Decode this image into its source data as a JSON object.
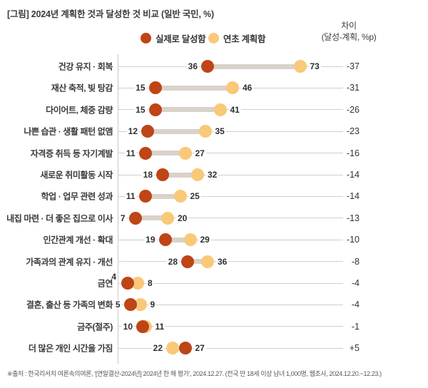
{
  "title": "[그림] 2024년 계획한 것과 달성한 것 비교 (일반 국민, %)",
  "legend": {
    "achieved_label": "실제로 달성함",
    "planned_label": "연초 계획함"
  },
  "diff_header_line1": "차이",
  "diff_header_line2": "(달성-계획, %p)",
  "source_note": "※출처 : 한국리서치 여론속의여론, ‘[연말결산-2024년] 2024년 한 해 평가’, 2024.12.27. (전국 만 18세 이상 남녀 1,000명, 웹조사, 2024.12.20.~12.23.)",
  "colors": {
    "achieved": "#be4516",
    "planned": "#f9c878",
    "connector": "#d9d2c9",
    "gridline": "#cfcfcf",
    "text": "#3a3a3a"
  },
  "chart_data": {
    "type": "scatter",
    "variant": "dumbbell",
    "title": "[그림] 2024년 계획한 것과 달성한 것 비교 (일반 국민, %)",
    "xlabel": "",
    "ylabel": "",
    "xlim": [
      0,
      90
    ],
    "grid": "horizontal-row-lines",
    "legend_position": "top",
    "categories": [
      "건강 유지 · 회복",
      "재산 축적, 빚 탕감",
      "다이어트, 체중 감량",
      "나쁜 습관 · 생활 패턴 없앰",
      "자격증 취득 등 자기계발",
      "새로운 취미활동 시작",
      "학업 · 업무 관련 성과",
      "내집 마련 · 더 좋은 집으로 이사",
      "인간관계 개선 · 확대",
      "가족과의 관계 유지 · 개선",
      "금연",
      "결혼, 출산 등 가족의 변화",
      "금주(절주)",
      "더 많은 개인 시간을 가짐"
    ],
    "series": [
      {
        "name": "실제로 달성함",
        "values": [
          36,
          15,
          15,
          12,
          11,
          18,
          11,
          7,
          19,
          28,
          4,
          5,
          10,
          27
        ]
      },
      {
        "name": "연초 계획함",
        "values": [
          73,
          46,
          41,
          35,
          27,
          32,
          25,
          20,
          29,
          36,
          8,
          9,
          11,
          22
        ]
      }
    ],
    "diff_column_header": "차이 (달성-계획, %p)",
    "diffs": [
      "-37",
      "-31",
      "-26",
      "-23",
      "-16",
      "-14",
      "-14",
      "-13",
      "-10",
      "-8",
      "-4",
      "-4",
      "-1",
      "+5"
    ]
  }
}
